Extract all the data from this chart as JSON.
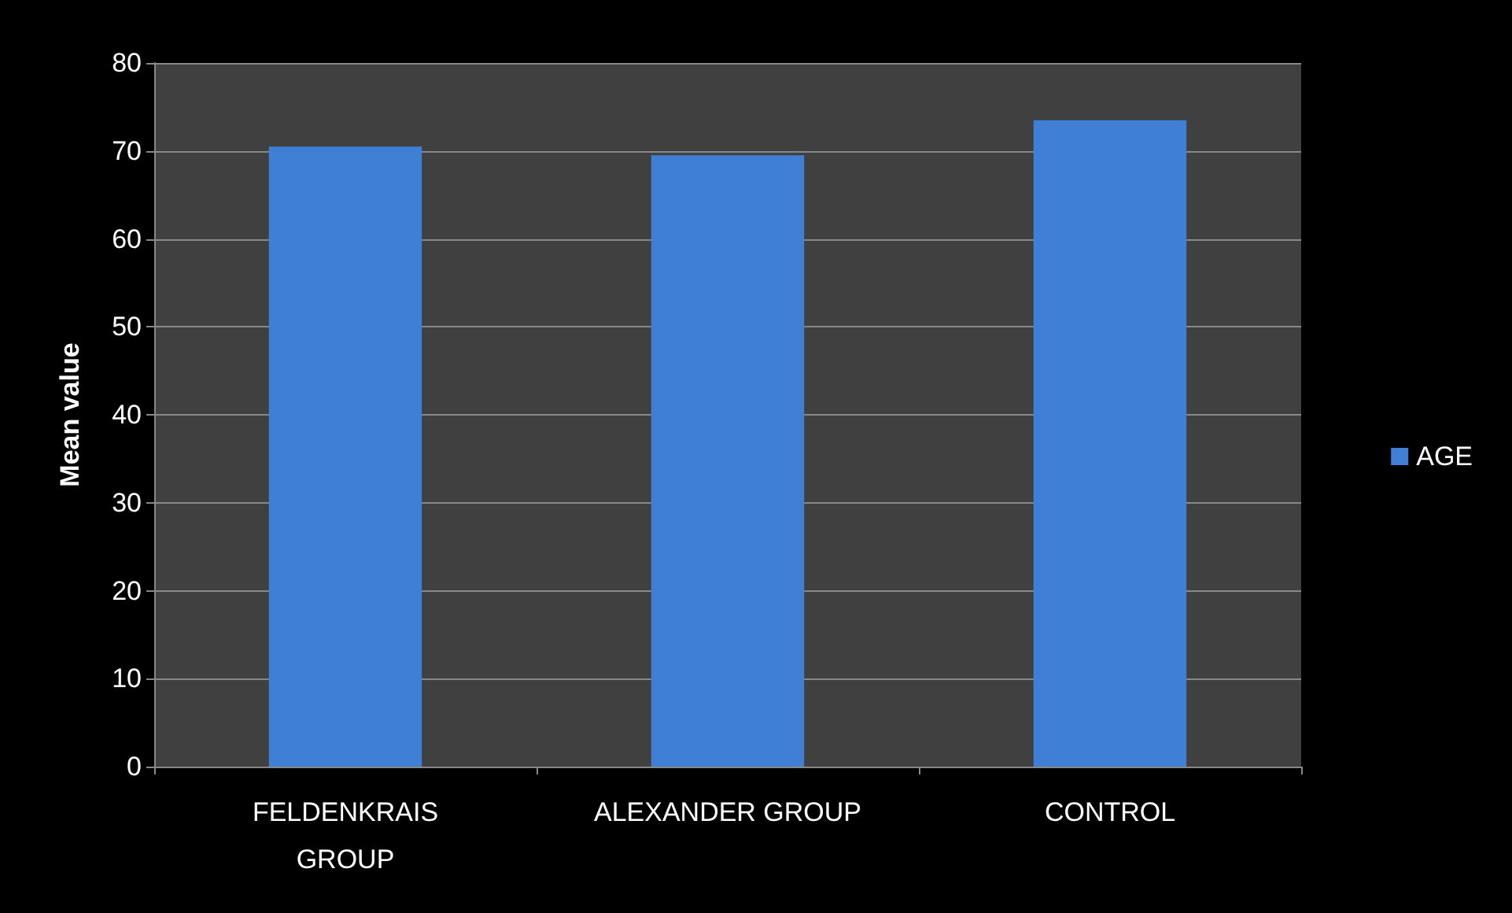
{
  "chart_data": {
    "type": "bar",
    "ylabel": "Mean value",
    "categories": [
      "FELDENKRAIS\nGROUP",
      "ALEXANDER GROUP",
      "CONTROL"
    ],
    "series": [
      {
        "name": "AGE",
        "color": "#3f7fd6",
        "values": [
          70.5,
          69.5,
          73.5
        ]
      }
    ],
    "ylim": [
      0,
      80
    ],
    "yticks": [
      0,
      10,
      20,
      30,
      40,
      50,
      60,
      70,
      80
    ],
    "grid": "y",
    "legend": "right"
  }
}
